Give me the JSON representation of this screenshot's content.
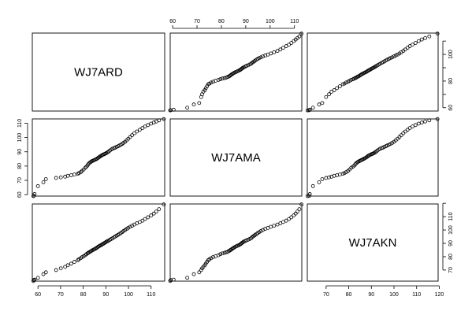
{
  "chart_data": {
    "type": "scatter",
    "kind": "pairs (scatterplot matrix)",
    "variables": [
      "WJ7ARD",
      "WJ7AMA",
      "WJ7AKN"
    ],
    "ranges": {
      "WJ7ARD": [
        57.5,
        116
      ],
      "WJ7AMA": [
        59,
        113
      ],
      "WJ7AKN": [
        61.7,
        119.5
      ]
    },
    "ticks": {
      "WJ7ARD": [
        60,
        70,
        80,
        90,
        100,
        110
      ],
      "WJ7AMA": [
        60,
        70,
        80,
        90,
        100,
        110
      ],
      "WJ7AKN": [
        70,
        80,
        90,
        100,
        110,
        120
      ]
    },
    "tick_labels": {
      "top_col1": [
        "60",
        "70",
        "80",
        "90",
        "100",
        "110"
      ],
      "right_row0": [
        "60",
        "80",
        "100"
      ],
      "left_row1": [
        "60",
        "70",
        "80",
        "90",
        "100",
        "110"
      ],
      "bottom_col0": [
        "60",
        "70",
        "80",
        "90",
        "100",
        "110"
      ],
      "bottom_col2": [
        "70",
        "80",
        "90",
        "100",
        "110",
        "120"
      ],
      "right_row2": [
        "70",
        "80",
        "90",
        "100",
        "110"
      ]
    },
    "grid": false,
    "legend": "none",
    "data": [
      [
        58.0,
        59.0,
        61.8
      ],
      [
        58.1,
        59.2,
        62.5
      ],
      [
        58.5,
        60.4,
        62.8
      ],
      [
        60.0,
        66.0,
        64.2
      ],
      [
        62.4,
        68.7,
        66.9
      ],
      [
        63.5,
        70.9,
        68.3
      ],
      [
        68.0,
        71.7,
        70.0
      ],
      [
        70.1,
        72.1,
        71.3
      ],
      [
        72.0,
        72.6,
        72.4
      ],
      [
        73.2,
        73.2,
        73.6
      ],
      [
        74.7,
        73.6,
        74.8
      ],
      [
        76.1,
        74.1,
        76.1
      ],
      [
        77.6,
        74.6,
        77.4
      ],
      [
        78.1,
        75.1,
        78.1
      ],
      [
        78.9,
        75.8,
        78.9
      ],
      [
        79.5,
        76.6,
        79.7
      ],
      [
        80.2,
        77.6,
        80.4
      ],
      [
        80.9,
        78.8,
        81.1
      ],
      [
        81.4,
        79.6,
        81.9
      ],
      [
        81.9,
        80.4,
        82.5
      ],
      [
        82.2,
        81.3,
        82.9
      ],
      [
        82.6,
        82.0,
        83.3
      ],
      [
        83.1,
        82.6,
        83.8
      ],
      [
        83.5,
        83.1,
        84.2
      ],
      [
        83.9,
        83.5,
        84.7
      ],
      [
        84.4,
        83.8,
        85.1
      ],
      [
        84.8,
        84.1,
        85.5
      ],
      [
        85.3,
        84.5,
        85.9
      ],
      [
        85.7,
        84.8,
        86.4
      ],
      [
        86.1,
        85.2,
        86.8
      ],
      [
        86.5,
        85.6,
        87.3
      ],
      [
        86.9,
        86.1,
        87.8
      ],
      [
        87.3,
        86.6,
        88.2
      ],
      [
        87.8,
        87.1,
        88.6
      ],
      [
        88.2,
        87.5,
        89.0
      ],
      [
        88.6,
        87.9,
        89.5
      ],
      [
        89.1,
        88.2,
        89.9
      ],
      [
        89.5,
        88.5,
        90.4
      ],
      [
        89.9,
        88.8,
        90.8
      ],
      [
        90.3,
        89.2,
        91.3
      ],
      [
        90.8,
        89.7,
        91.7
      ],
      [
        91.3,
        90.2,
        92.2
      ],
      [
        91.8,
        90.9,
        92.7
      ],
      [
        92.4,
        91.6,
        93.3
      ],
      [
        93.0,
        92.2,
        93.9
      ],
      [
        93.7,
        92.6,
        94.6
      ],
      [
        94.2,
        93.0,
        95.2
      ],
      [
        94.8,
        93.5,
        95.8
      ],
      [
        95.4,
        93.9,
        96.4
      ],
      [
        96.0,
        94.4,
        97.0
      ],
      [
        96.6,
        94.9,
        97.7
      ],
      [
        97.2,
        95.5,
        98.4
      ],
      [
        97.8,
        96.2,
        99.2
      ],
      [
        98.5,
        97.0,
        100.0
      ],
      [
        99.2,
        98.0,
        100.8
      ],
      [
        99.9,
        99.1,
        101.6
      ],
      [
        100.7,
        100.3,
        102.4
      ],
      [
        101.6,
        101.6,
        103.2
      ],
      [
        102.6,
        103.0,
        104.1
      ],
      [
        103.7,
        104.2,
        105.0
      ],
      [
        105.0,
        105.4,
        106.0
      ],
      [
        106.2,
        106.6,
        107.0
      ],
      [
        107.3,
        107.7,
        108.2
      ],
      [
        108.6,
        108.7,
        109.5
      ],
      [
        110.0,
        109.7,
        110.9
      ],
      [
        111.2,
        110.5,
        112.3
      ],
      [
        112.3,
        111.2,
        113.8
      ],
      [
        113.5,
        112.0,
        115.6
      ],
      [
        115.6,
        112.9,
        119.2
      ]
    ]
  }
}
